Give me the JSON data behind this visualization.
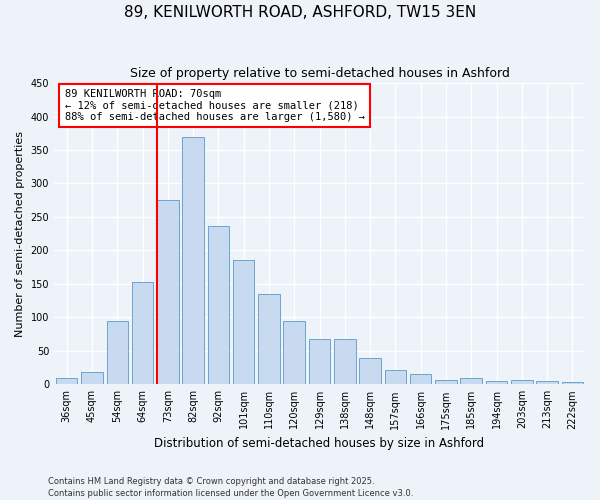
{
  "title": "89, KENILWORTH ROAD, ASHFORD, TW15 3EN",
  "subtitle": "Size of property relative to semi-detached houses in Ashford",
  "xlabel": "Distribution of semi-detached houses by size in Ashford",
  "ylabel": "Number of semi-detached properties",
  "categories": [
    "36sqm",
    "45sqm",
    "54sqm",
    "64sqm",
    "73sqm",
    "82sqm",
    "92sqm",
    "101sqm",
    "110sqm",
    "120sqm",
    "129sqm",
    "138sqm",
    "148sqm",
    "157sqm",
    "166sqm",
    "175sqm",
    "185sqm",
    "194sqm",
    "203sqm",
    "213sqm",
    "222sqm"
  ],
  "values": [
    10,
    18,
    95,
    153,
    275,
    370,
    237,
    185,
    135,
    95,
    67,
    67,
    40,
    22,
    16,
    7,
    10,
    5,
    6,
    5,
    4
  ],
  "bar_color": "#c8daf0",
  "bar_edge_color": "#6ba3d0",
  "reference_line_label": "89 KENILWORTH ROAD: 70sqm",
  "annotation_line1": "← 12% of semi-detached houses are smaller (218)",
  "annotation_line2": "88% of semi-detached houses are larger (1,580) →",
  "ylim": [
    0,
    450
  ],
  "yticks": [
    0,
    50,
    100,
    150,
    200,
    250,
    300,
    350,
    400,
    450
  ],
  "footnote1": "Contains HM Land Registry data © Crown copyright and database right 2025.",
  "footnote2": "Contains public sector information licensed under the Open Government Licence v3.0.",
  "bg_color": "#eef2f9",
  "grid_color": "#ffffff",
  "title_fontsize": 11,
  "subtitle_fontsize": 9,
  "annot_fontsize": 7.5,
  "tick_fontsize": 7,
  "ylabel_fontsize": 8,
  "xlabel_fontsize": 8.5
}
